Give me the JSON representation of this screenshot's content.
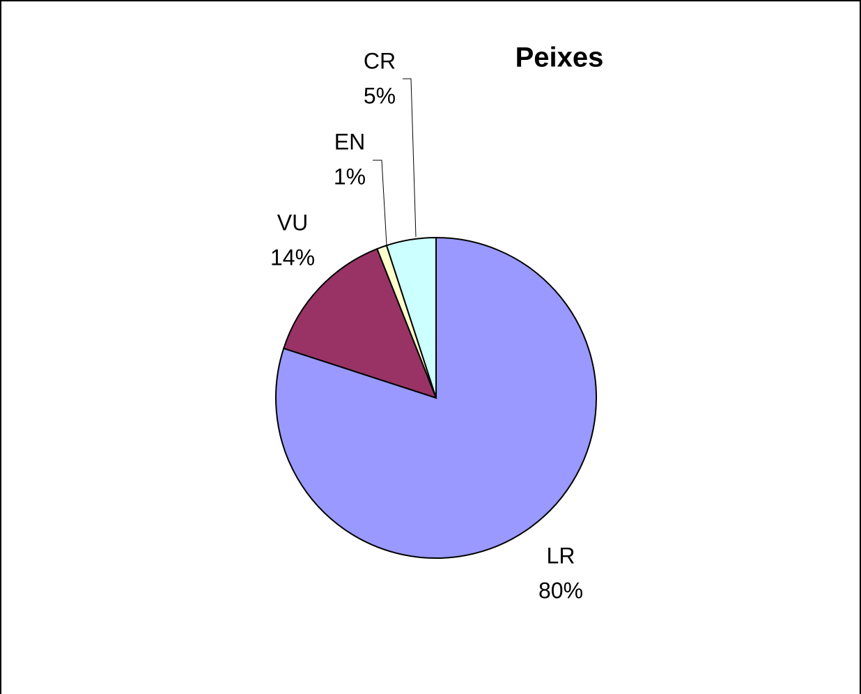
{
  "chart_data": {
    "type": "pie",
    "title": "Peixes",
    "categories": [
      "LR",
      "VU",
      "EN",
      "CR"
    ],
    "values": [
      80,
      14,
      1,
      5
    ],
    "value_labels": [
      "80%",
      "14%",
      "1%",
      "5%"
    ],
    "colors": [
      "#9999ff",
      "#993366",
      "#ffffcc",
      "#ccffff"
    ]
  }
}
